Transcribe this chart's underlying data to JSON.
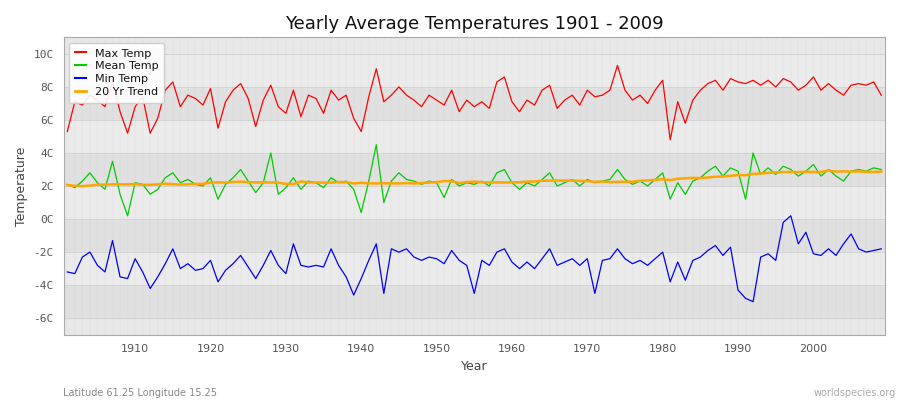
{
  "title": "Yearly Average Temperatures 1901 - 2009",
  "xlabel": "Year",
  "ylabel": "Temperature",
  "subtitle_lat": "Latitude 61.25 Longitude 15.25",
  "watermark": "worldspecies.org",
  "ylim": [
    -7,
    11
  ],
  "yticks": [
    -6,
    -4,
    -2,
    0,
    2,
    4,
    6,
    8,
    10
  ],
  "ytick_labels": [
    "-6C",
    "-4C",
    "-2C",
    "0C",
    "2C",
    "4C",
    "6C",
    "8C",
    "10C"
  ],
  "year_start": 1901,
  "year_end": 2009,
  "colors": {
    "max": "#ff0000",
    "mean": "#00cc00",
    "min": "#0000ff",
    "trend": "#ffa500",
    "band_light": "#e8e8e8",
    "band_dark": "#f8f8f8",
    "grid_v": "#d0d0d0",
    "grid_h": "#d0d0d0"
  },
  "legend_labels": [
    "Max Temp",
    "Mean Temp",
    "Min Temp",
    "20 Yr Trend"
  ],
  "max_temps": [
    5.3,
    7.1,
    6.9,
    7.5,
    7.2,
    6.8,
    8.3,
    6.5,
    5.2,
    6.8,
    7.4,
    5.2,
    6.1,
    7.8,
    8.3,
    6.8,
    7.5,
    7.3,
    6.9,
    7.9,
    5.5,
    7.1,
    7.8,
    8.2,
    7.3,
    5.6,
    7.2,
    8.1,
    6.8,
    6.4,
    7.8,
    6.2,
    7.5,
    7.3,
    6.4,
    7.8,
    7.2,
    7.5,
    6.1,
    5.3,
    7.4,
    9.1,
    7.1,
    7.5,
    8.0,
    7.5,
    7.2,
    6.8,
    7.5,
    7.2,
    6.9,
    7.8,
    6.5,
    7.2,
    6.8,
    7.1,
    6.7,
    8.3,
    8.6,
    7.1,
    6.5,
    7.2,
    6.9,
    7.8,
    8.1,
    6.7,
    7.2,
    7.5,
    6.9,
    7.8,
    7.4,
    7.5,
    7.8,
    9.3,
    7.8,
    7.2,
    7.5,
    7.0,
    7.8,
    8.4,
    4.8,
    7.1,
    5.8,
    7.2,
    7.8,
    8.2,
    8.4,
    7.8,
    8.5,
    8.3,
    8.2,
    8.4,
    8.1,
    8.4,
    8.0,
    8.5,
    8.3,
    7.8,
    8.1,
    8.6,
    7.8,
    8.2,
    7.8,
    7.5,
    8.1,
    8.2,
    8.1,
    8.3,
    7.5
  ],
  "mean_temps": [
    2.1,
    1.9,
    2.3,
    2.8,
    2.2,
    1.8,
    3.5,
    1.5,
    0.2,
    2.2,
    2.1,
    1.5,
    1.8,
    2.5,
    2.8,
    2.2,
    2.4,
    2.1,
    2.0,
    2.5,
    1.2,
    2.1,
    2.5,
    3.0,
    2.3,
    1.6,
    2.2,
    4.0,
    1.5,
    1.9,
    2.5,
    1.8,
    2.3,
    2.2,
    1.9,
    2.5,
    2.2,
    2.3,
    1.8,
    0.4,
    2.3,
    4.5,
    1.0,
    2.3,
    2.8,
    2.4,
    2.3,
    2.1,
    2.3,
    2.2,
    1.3,
    2.4,
    2.0,
    2.2,
    2.1,
    2.3,
    2.0,
    2.8,
    3.0,
    2.2,
    1.8,
    2.2,
    2.0,
    2.4,
    2.8,
    2.0,
    2.2,
    2.4,
    2.0,
    2.4,
    2.2,
    2.3,
    2.4,
    3.0,
    2.4,
    2.1,
    2.3,
    2.0,
    2.4,
    2.8,
    1.2,
    2.2,
    1.5,
    2.3,
    2.5,
    2.9,
    3.2,
    2.6,
    3.1,
    2.9,
    1.2,
    4.0,
    2.7,
    3.1,
    2.7,
    3.2,
    3.0,
    2.6,
    2.9,
    3.3,
    2.6,
    3.0,
    2.6,
    2.3,
    2.9,
    3.0,
    2.9,
    3.1,
    3.0
  ],
  "min_temps": [
    -3.2,
    -3.3,
    -2.3,
    -2.0,
    -2.8,
    -3.2,
    -1.3,
    -3.5,
    -3.6,
    -2.4,
    -3.2,
    -4.2,
    -3.5,
    -2.7,
    -1.8,
    -3.0,
    -2.7,
    -3.1,
    -3.0,
    -2.5,
    -3.8,
    -3.1,
    -2.7,
    -2.2,
    -2.9,
    -3.6,
    -2.8,
    -1.9,
    -2.8,
    -3.3,
    -1.5,
    -2.8,
    -2.9,
    -2.8,
    -2.9,
    -1.8,
    -2.8,
    -3.5,
    -4.6,
    -3.6,
    -2.5,
    -1.5,
    -4.5,
    -1.8,
    -2.0,
    -1.8,
    -2.3,
    -2.5,
    -2.3,
    -2.4,
    -2.7,
    -1.9,
    -2.5,
    -2.8,
    -4.5,
    -2.5,
    -2.8,
    -2.0,
    -1.8,
    -2.6,
    -3.0,
    -2.6,
    -3.0,
    -2.4,
    -1.8,
    -2.8,
    -2.6,
    -2.4,
    -2.8,
    -2.4,
    -4.5,
    -2.5,
    -2.4,
    -1.8,
    -2.4,
    -2.7,
    -2.5,
    -2.8,
    -2.4,
    -2.0,
    -3.8,
    -2.6,
    -3.7,
    -2.5,
    -2.3,
    -1.9,
    -1.6,
    -2.2,
    -1.7,
    -4.3,
    -4.8,
    -5.0,
    -2.3,
    -2.1,
    -2.5,
    -0.2,
    0.2,
    -1.5,
    -0.8,
    -2.1,
    -2.2,
    -1.8,
    -2.2,
    -1.5,
    -0.9,
    -1.8,
    -2.0,
    -1.9,
    -1.8
  ]
}
